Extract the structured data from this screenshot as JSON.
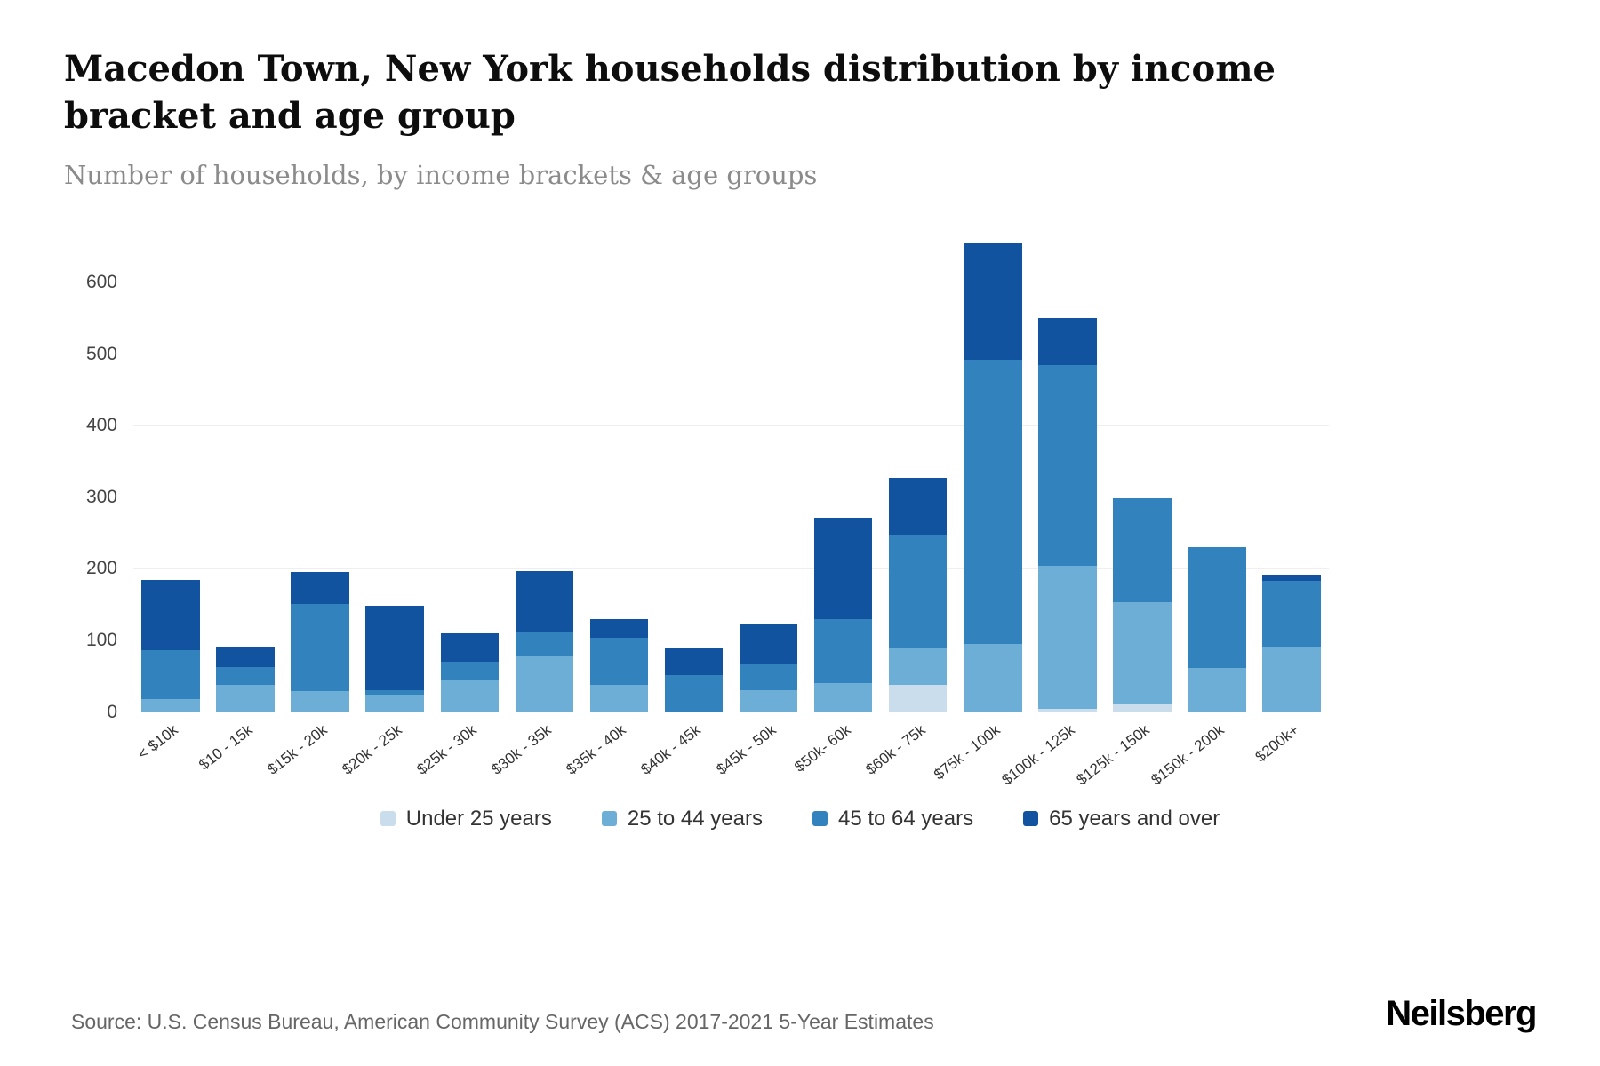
{
  "header": {
    "title": "Macedon Town, New York households distribution by income bracket and age group",
    "subtitle": "Number of households, by income brackets & age groups"
  },
  "footer": {
    "source": "Source: U.S. Census Bureau, American Community Survey (ACS) 2017-2021 5-Year Estimates",
    "brand": "Neilsberg"
  },
  "chart_data": {
    "type": "bar",
    "stacked": true,
    "title": "Macedon Town, New York households distribution by income bracket and age group",
    "xlabel": "",
    "ylabel": "Number of households",
    "grid": true,
    "legend_position": "bottom",
    "ylim": [
      0,
      670
    ],
    "yticks": [
      0,
      100,
      200,
      300,
      400,
      500,
      600
    ],
    "categories": [
      "< $10k",
      "$10 - 15k",
      "$15k - 20k",
      "$20k - 25k",
      "$25k - 30k",
      "$30k - 35k",
      "$35k - 40k",
      "$40k - 45k",
      "$45k - 50k",
      "$50k- 60k",
      "$60k - 75k",
      "$75k - 100k",
      "$100k - 125k",
      "$125k - 150k",
      "$150k - 200k",
      "$200k+"
    ],
    "series": [
      {
        "name": "Under 25 years",
        "color": "#c9ddec",
        "values": [
          0,
          0,
          0,
          0,
          0,
          0,
          0,
          0,
          0,
          0,
          38,
          0,
          5,
          12,
          0,
          0
        ]
      },
      {
        "name": "25 to 44 years",
        "color": "#6caed6",
        "values": [
          18,
          38,
          29,
          25,
          45,
          78,
          38,
          0,
          30,
          40,
          51,
          95,
          199,
          141,
          62,
          91
        ]
      },
      {
        "name": "45 to 64 years",
        "color": "#3182bd",
        "values": [
          69,
          25,
          122,
          6,
          25,
          33,
          66,
          52,
          36,
          90,
          159,
          397,
          281,
          146,
          168,
          92
        ]
      },
      {
        "name": "65 years and over",
        "color": "#11539f",
        "values": [
          98,
          29,
          45,
          117,
          40,
          86,
          26,
          37,
          57,
          141,
          79,
          163,
          65,
          0,
          0,
          9
        ]
      }
    ]
  }
}
